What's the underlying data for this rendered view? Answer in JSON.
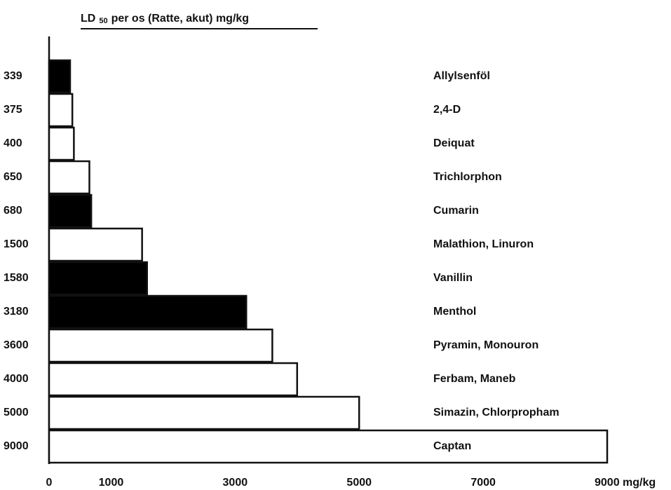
{
  "chart_data": {
    "type": "bar",
    "orientation": "horizontal",
    "title": {
      "main": "LD",
      "subscript": "50",
      "rest": "per os (Ratte, akut) mg/kg"
    },
    "categories": [
      "Allylsenföl",
      "2,4-D",
      "Deiquat",
      "Trichlorphon",
      "Cumarin",
      "Malathion, Linuron",
      "Vanillin",
      "Menthol",
      "Pyramin, Monouron",
      "Ferbam, Maneb",
      "Simazin, Chlorpropham",
      "Captan"
    ],
    "values": [
      339,
      375,
      400,
      650,
      680,
      1500,
      1580,
      3180,
      3600,
      4000,
      5000,
      9000
    ],
    "colors": [
      "#000000",
      "#ffffff",
      "#ffffff",
      "#ffffff",
      "#000000",
      "#ffffff",
      "#000000",
      "#000000",
      "#ffffff",
      "#ffffff",
      "#ffffff",
      "#ffffff"
    ],
    "xlim": [
      0,
      9000
    ],
    "xticks": [
      0,
      1000,
      3000,
      5000,
      7000,
      {
        "value": 9000,
        "label": "9000 mg/kg"
      }
    ],
    "grid": false
  }
}
